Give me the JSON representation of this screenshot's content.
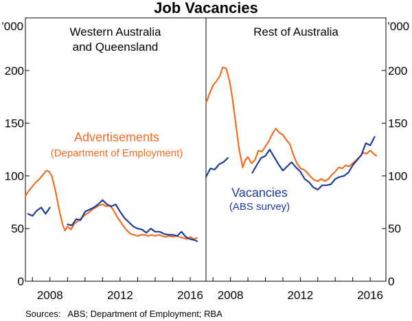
{
  "chart_data": {
    "type": "line",
    "title": "Job Vacancies",
    "unit": "’000",
    "ylim": [
      0,
      250
    ],
    "yticks": [
      0,
      50,
      100,
      150,
      200
    ],
    "xticks": [
      2008,
      2012,
      2016
    ],
    "xlim": [
      2006.6,
      2016.9
    ],
    "grid": false,
    "colors": {
      "Advertisements": "#f26c21",
      "Vacancies": "#1c3d96"
    },
    "annotations": {
      "advertisements": {
        "line1": "Advertisements",
        "line2": "(Department of Employment)"
      },
      "vacancies": {
        "line1": "Vacancies",
        "line2": "(ABS survey)"
      }
    },
    "panels": [
      {
        "title_lines": [
          "Western Australia",
          "and Queensland"
        ],
        "series": [
          {
            "name": "Advertisements",
            "points": [
              [
                2006.6,
                81
              ],
              [
                2006.8,
                86
              ],
              [
                2007.0,
                90
              ],
              [
                2007.2,
                94
              ],
              [
                2007.4,
                97
              ],
              [
                2007.6,
                101
              ],
              [
                2007.8,
                105
              ],
              [
                2007.95,
                104
              ],
              [
                2008.1,
                100
              ],
              [
                2008.3,
                87
              ],
              [
                2008.5,
                70
              ],
              [
                2008.7,
                55
              ],
              [
                2008.85,
                48
              ],
              [
                2009.0,
                52
              ],
              [
                2009.2,
                49
              ],
              [
                2009.4,
                55
              ],
              [
                2009.6,
                57
              ],
              [
                2009.8,
                60
              ],
              [
                2010.0,
                63
              ],
              [
                2010.2,
                65
              ],
              [
                2010.4,
                68
              ],
              [
                2010.6,
                70
              ],
              [
                2010.8,
                72
              ],
              [
                2011.0,
                73
              ],
              [
                2011.2,
                71
              ],
              [
                2011.4,
                72
              ],
              [
                2011.6,
                68
              ],
              [
                2011.8,
                62
              ],
              [
                2012.0,
                57
              ],
              [
                2012.2,
                52
              ],
              [
                2012.4,
                48
              ],
              [
                2012.6,
                45
              ],
              [
                2012.8,
                44
              ],
              [
                2013.0,
                43
              ],
              [
                2013.2,
                44
              ],
              [
                2013.4,
                44
              ],
              [
                2013.6,
                43
              ],
              [
                2013.8,
                44
              ],
              [
                2014.0,
                43
              ],
              [
                2014.2,
                44
              ],
              [
                2014.4,
                43
              ],
              [
                2014.6,
                42
              ],
              [
                2014.8,
                43
              ],
              [
                2015.0,
                42
              ],
              [
                2015.2,
                43
              ],
              [
                2015.4,
                42
              ],
              [
                2015.6,
                41
              ],
              [
                2015.8,
                40
              ],
              [
                2016.0,
                42
              ],
              [
                2016.2,
                40
              ],
              [
                2016.4,
                41
              ]
            ]
          },
          {
            "name": "Vacancies",
            "segments": [
              [
                [
                  2006.75,
                  64
                ],
                [
                  2007.0,
                  62
                ],
                [
                  2007.25,
                  67
                ],
                [
                  2007.5,
                  70
                ],
                [
                  2007.75,
                  64
                ],
                [
                  2008.0,
                  70
                ]
              ],
              [
                [
                  2009.0,
                  54
                ],
                [
                  2009.25,
                  53
                ],
                [
                  2009.5,
                  59
                ],
                [
                  2009.75,
                  58
                ],
                [
                  2010.0,
                  66
                ],
                [
                  2010.25,
                  68
                ],
                [
                  2010.5,
                  70
                ],
                [
                  2010.75,
                  73
                ],
                [
                  2011.0,
                  77
                ],
                [
                  2011.25,
                  73
                ],
                [
                  2011.5,
                  71
                ],
                [
                  2011.75,
                  73
                ],
                [
                  2012.0,
                  66
                ],
                [
                  2012.25,
                  60
                ],
                [
                  2012.5,
                  56
                ],
                [
                  2012.75,
                  52
                ],
                [
                  2013.0,
                  50
                ],
                [
                  2013.25,
                  49
                ],
                [
                  2013.5,
                  46
                ],
                [
                  2013.75,
                  50
                ],
                [
                  2014.0,
                  47
                ],
                [
                  2014.25,
                  47
                ],
                [
                  2014.5,
                  45
                ],
                [
                  2014.75,
                  44
                ],
                [
                  2015.0,
                  44
                ],
                [
                  2015.25,
                  43
                ],
                [
                  2015.5,
                  47
                ],
                [
                  2015.75,
                  42
                ],
                [
                  2016.0,
                  40
                ],
                [
                  2016.25,
                  39
                ],
                [
                  2016.4,
                  38
                ]
              ]
            ]
          }
        ]
      },
      {
        "title_lines": [
          "Rest of Australia"
        ],
        "series": [
          {
            "name": "Advertisements",
            "points": [
              [
                2006.6,
                169
              ],
              [
                2006.8,
                178
              ],
              [
                2007.0,
                186
              ],
              [
                2007.2,
                190
              ],
              [
                2007.4,
                195
              ],
              [
                2007.55,
                203
              ],
              [
                2007.75,
                202
              ],
              [
                2007.95,
                190
              ],
              [
                2008.1,
                175
              ],
              [
                2008.3,
                150
              ],
              [
                2008.5,
                125
              ],
              [
                2008.7,
                108
              ],
              [
                2008.85,
                115
              ],
              [
                2009.0,
                118
              ],
              [
                2009.2,
                112
              ],
              [
                2009.4,
                115
              ],
              [
                2009.6,
                124
              ],
              [
                2009.8,
                123
              ],
              [
                2010.0,
                128
              ],
              [
                2010.2,
                133
              ],
              [
                2010.4,
                140
              ],
              [
                2010.6,
                145
              ],
              [
                2010.8,
                141
              ],
              [
                2011.0,
                139
              ],
              [
                2011.2,
                134
              ],
              [
                2011.4,
                130
              ],
              [
                2011.6,
                120
              ],
              [
                2011.8,
                112
              ],
              [
                2012.0,
                107
              ],
              [
                2012.2,
                106
              ],
              [
                2012.4,
                103
              ],
              [
                2012.6,
                99
              ],
              [
                2012.8,
                96
              ],
              [
                2013.0,
                95
              ],
              [
                2013.2,
                97
              ],
              [
                2013.4,
                95
              ],
              [
                2013.6,
                97
              ],
              [
                2013.8,
                101
              ],
              [
                2014.0,
                104
              ],
              [
                2014.2,
                108
              ],
              [
                2014.4,
                107
              ],
              [
                2014.6,
                110
              ],
              [
                2014.8,
                109
              ],
              [
                2015.0,
                112
              ],
              [
                2015.2,
                115
              ],
              [
                2015.4,
                118
              ],
              [
                2015.6,
                122
              ],
              [
                2015.8,
                121
              ],
              [
                2016.0,
                124
              ],
              [
                2016.2,
                121
              ],
              [
                2016.35,
                119
              ]
            ]
          },
          {
            "name": "Vacancies",
            "segments": [
              [
                [
                  2006.6,
                  99
                ],
                [
                  2006.85,
                  107
                ],
                [
                  2007.1,
                  106
                ],
                [
                  2007.35,
                  111
                ],
                [
                  2007.6,
                  113
                ],
                [
                  2007.85,
                  117
                ]
              ],
              [
                [
                  2009.25,
                  103
                ],
                [
                  2009.5,
                  110
                ],
                [
                  2009.75,
                  117
                ],
                [
                  2010.0,
                  119
                ],
                [
                  2010.25,
                  125
                ],
                [
                  2010.5,
                  118
                ],
                [
                  2010.75,
                  111
                ],
                [
                  2011.0,
                  105
                ],
                [
                  2011.25,
                  109
                ],
                [
                  2011.5,
                  113
                ],
                [
                  2011.75,
                  108
                ],
                [
                  2012.0,
                  104
                ],
                [
                  2012.25,
                  97
                ],
                [
                  2012.5,
                  94
                ],
                [
                  2012.75,
                  89
                ],
                [
                  2013.0,
                  87
                ],
                [
                  2013.25,
                  91
                ],
                [
                  2013.5,
                  91
                ],
                [
                  2013.75,
                  92
                ],
                [
                  2014.0,
                  97
                ],
                [
                  2014.25,
                  99
                ],
                [
                  2014.5,
                  100
                ],
                [
                  2014.75,
                  103
                ],
                [
                  2015.0,
                  110
                ],
                [
                  2015.25,
                  115
                ],
                [
                  2015.5,
                  120
                ],
                [
                  2015.75,
                  131
                ],
                [
                  2016.0,
                  129
                ],
                [
                  2016.25,
                  137
                ]
              ]
            ]
          }
        ]
      }
    ]
  },
  "source": "Sources:   ABS; Department of Employment; RBA"
}
